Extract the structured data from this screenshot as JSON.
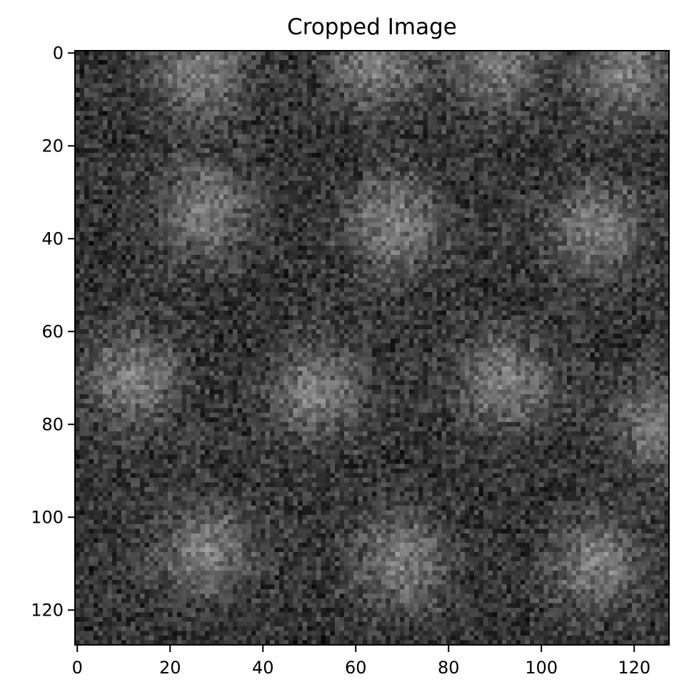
{
  "chart_data": {
    "type": "heatmap",
    "title": "Cropped Image",
    "xlabel": "",
    "ylabel": "",
    "colormap": "gray",
    "image_width": 128,
    "image_height": 128,
    "xlim": [
      -0.5,
      127.5
    ],
    "ylim": [
      127.5,
      -0.5
    ],
    "x_ticks": [
      0,
      20,
      40,
      60,
      80,
      100,
      120
    ],
    "y_ticks": [
      0,
      20,
      40,
      60,
      80,
      100,
      120
    ],
    "x_tick_labels": [
      "0",
      "20",
      "40",
      "60",
      "80",
      "100",
      "120"
    ],
    "y_tick_labels": [
      "0",
      "20",
      "40",
      "60",
      "80",
      "100",
      "120"
    ],
    "pattern": {
      "description": "noisy grid of bright blobs",
      "blob_centers": [
        [
          4,
          26
        ],
        [
          2,
          64
        ],
        [
          2,
          90
        ],
        [
          4,
          118
        ],
        [
          34,
          28
        ],
        [
          37,
          68
        ],
        [
          38,
          112
        ],
        [
          70,
          12
        ],
        [
          73,
          52
        ],
        [
          71,
          92
        ],
        [
          80,
          126
        ],
        [
          107,
          28
        ],
        [
          109,
          70
        ],
        [
          110,
          112
        ]
      ],
      "base_intensity": 0.2,
      "noise_amplitude": 0.22,
      "blob_intensity": 0.28,
      "blob_radius": 7
    },
    "grid": false
  }
}
